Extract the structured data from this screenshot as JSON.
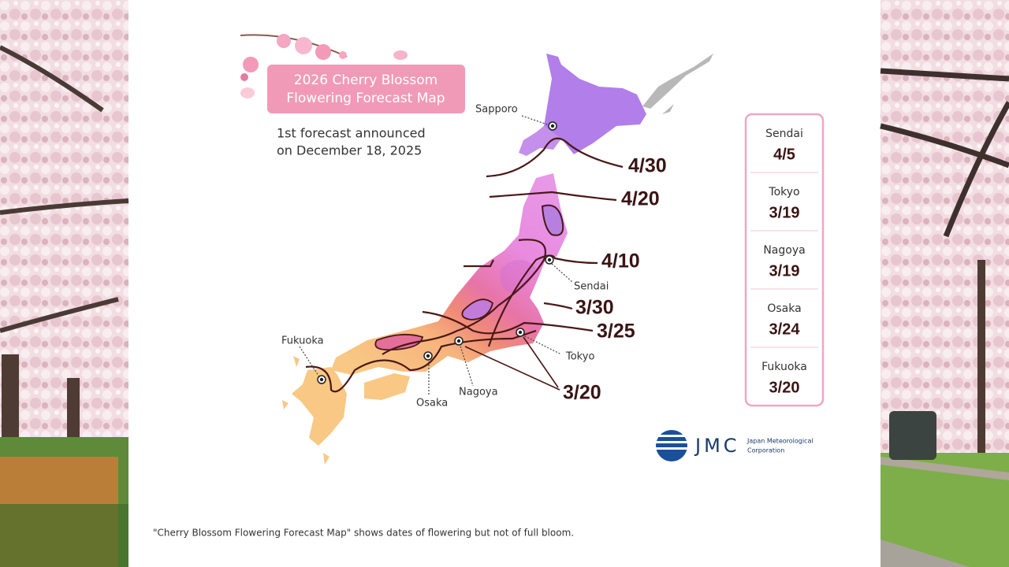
{
  "title_lines": [
    "2026 Cherry Blossom",
    "Flowering Forecast Map"
  ],
  "subtitle_lines": [
    "1st forecast announced",
    "on December 18, 2025"
  ],
  "isolines": [
    "4/30",
    "4/20",
    "4/10",
    "3/30",
    "3/25",
    "3/20"
  ],
  "cities": [
    "Sapporo",
    "Sendai",
    "Tokyo",
    "Nagoya",
    "Osaka",
    "Fukuoka"
  ],
  "forecast_table": [
    {
      "city": "Sendai",
      "date": "4/5"
    },
    {
      "city": "Tokyo",
      "date": "3/19"
    },
    {
      "city": "Nagoya",
      "date": "3/19"
    },
    {
      "city": "Osaka",
      "date": "3/24"
    },
    {
      "city": "Fukuoka",
      "date": "3/20"
    }
  ],
  "logo": {
    "mark": "JMC",
    "name_lines": [
      "Japan Meteorological",
      "Corporation"
    ]
  },
  "footnote": "\"Cherry Blossom Flowering Forecast Map\" shows dates of flowering but not of full bloom."
}
